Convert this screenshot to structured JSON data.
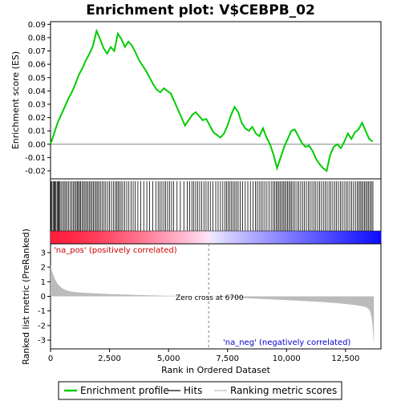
{
  "chart_data": {
    "type": "line",
    "title": "Enrichment plot: V$CEBPB_02",
    "ylabel_top": "Enrichment score (ES)",
    "ylabel_bottom": "Ranked list metric (PreRanked)",
    "xlabel": "Rank in Ordered Dataset",
    "xlim": [
      0,
      14000
    ],
    "es_ylim": [
      -0.026,
      0.092
    ],
    "es_yticks": [
      "-0.02",
      "-0.01",
      "0.00",
      "0.01",
      "0.02",
      "0.03",
      "0.04",
      "0.05",
      "0.06",
      "0.07",
      "0.08",
      "0.09"
    ],
    "es_ytick_values": [
      -0.02,
      -0.01,
      0.0,
      0.01,
      0.02,
      0.03,
      0.04,
      0.05,
      0.06,
      0.07,
      0.08,
      0.09
    ],
    "metric_ylim": [
      -3.6,
      3.6
    ],
    "metric_yticks": [
      "-3",
      "-2",
      "-1",
      "0",
      "1",
      "2",
      "3"
    ],
    "metric_ytick_values": [
      -3,
      -2,
      -1,
      0,
      1,
      2,
      3
    ],
    "xticks": [
      "0",
      "2,500",
      "5,000",
      "7,500",
      "10,000",
      "12,500"
    ],
    "xtick_values": [
      0,
      2500,
      5000,
      7500,
      10000,
      12500
    ],
    "series": [
      {
        "name": "Enrichment profile",
        "color": "#00cc00",
        "x": [
          0,
          150,
          300,
          450,
          600,
          750,
          900,
          1050,
          1200,
          1350,
          1500,
          1650,
          1800,
          1950,
          2100,
          2250,
          2400,
          2550,
          2700,
          2850,
          3000,
          3150,
          3300,
          3450,
          3600,
          3750,
          3900,
          4050,
          4200,
          4350,
          4500,
          4650,
          4800,
          4950,
          5100,
          5250,
          5400,
          5550,
          5700,
          5850,
          6000,
          6150,
          6300,
          6450,
          6600,
          6750,
          6900,
          7050,
          7200,
          7350,
          7500,
          7650,
          7800,
          7950,
          8100,
          8250,
          8400,
          8550,
          8700,
          8850,
          9000,
          9150,
          9300,
          9450,
          9600,
          9750,
          9900,
          10050,
          10200,
          10350,
          10500,
          10650,
          10800,
          10950,
          11100,
          11250,
          11400,
          11550,
          11700,
          11850,
          12000,
          12150,
          12300,
          12450,
          12600,
          12750,
          12900,
          13050,
          13200,
          13350,
          13500,
          13650
        ],
        "values": [
          0.0,
          0.008,
          0.016,
          0.022,
          0.028,
          0.034,
          0.039,
          0.045,
          0.052,
          0.057,
          0.063,
          0.068,
          0.074,
          0.085,
          0.079,
          0.072,
          0.068,
          0.073,
          0.07,
          0.083,
          0.079,
          0.073,
          0.077,
          0.074,
          0.069,
          0.063,
          0.059,
          0.055,
          0.05,
          0.045,
          0.041,
          0.039,
          0.042,
          0.04,
          0.038,
          0.032,
          0.026,
          0.02,
          0.014,
          0.018,
          0.022,
          0.024,
          0.021,
          0.018,
          0.019,
          0.014,
          0.009,
          0.007,
          0.005,
          0.008,
          0.014,
          0.022,
          0.028,
          0.024,
          0.016,
          0.012,
          0.01,
          0.013,
          0.008,
          0.006,
          0.012,
          0.005,
          0.0,
          -0.008,
          -0.018,
          -0.01,
          -0.002,
          0.004,
          0.01,
          0.011,
          0.006,
          0.001,
          -0.002,
          -0.001,
          -0.005,
          -0.011,
          -0.015,
          -0.018,
          -0.02,
          -0.008,
          -0.002,
          0.0,
          -0.003,
          0.002,
          0.008,
          0.004,
          0.009,
          0.011,
          0.016,
          0.01,
          0.004,
          0.002
        ]
      }
    ],
    "hits": [
      20,
      60,
      110,
      150,
      190,
      230,
      280,
      320,
      360,
      400,
      450,
      520,
      580,
      640,
      700,
      760,
      830,
      900,
      960,
      1020,
      1080,
      1130,
      1180,
      1230,
      1280,
      1340,
      1400,
      1460,
      1520,
      1580,
      1640,
      1700,
      1760,
      1820,
      1880,
      1940,
      2000,
      2060,
      2130,
      2200,
      2270,
      2340,
      2420,
      2500,
      2580,
      2660,
      2740,
      2800,
      2860,
      2920,
      2990,
      3060,
      3140,
      3230,
      3320,
      3410,
      3500,
      3590,
      3700,
      3820,
      3950,
      4080,
      4200,
      4330,
      4460,
      4560,
      4640,
      4720,
      4800,
      4880,
      4960,
      5040,
      5130,
      5220,
      5360,
      5500,
      5650,
      5790,
      5900,
      5990,
      6070,
      6150,
      6230,
      6320,
      6410,
      6500,
      6590,
      6680,
      6770,
      6880,
      7000,
      7100,
      7200,
      7300,
      7390,
      7460,
      7530,
      7600,
      7670,
      7740,
      7810,
      7880,
      7950,
      8040,
      8140,
      8250,
      8360,
      8470,
      8580,
      8680,
      8760,
      8840,
      8920,
      9000,
      9080,
      9170,
      9260,
      9350,
      9430,
      9500,
      9560,
      9620,
      9680,
      9740,
      9800,
      9860,
      9920,
      9980,
      10040,
      10100,
      10160,
      10220,
      10290,
      10360,
      10440,
      10520,
      10600,
      10680,
      10760,
      10840,
      10920,
      11000,
      11080,
      11160,
      11240,
      11320,
      11400,
      11480,
      11560,
      11640,
      11720,
      11800,
      11880,
      11960,
      12040,
      12120,
      12200,
      12280,
      12360,
      12440,
      12520,
      12600,
      12680,
      12760,
      12840,
      12920,
      13000,
      13060,
      13120,
      13180,
      13240,
      13300,
      13360,
      13420,
      13480,
      13540,
      13600,
      13660
    ],
    "zero_cross": 6700,
    "annotations": {
      "pos_label": "'na_pos' (positively correlated)",
      "neg_label": "'na_neg' (negatively correlated)",
      "zero_label": "Zero cross at 6700"
    },
    "legend": {
      "placement": "bottom",
      "items": [
        {
          "label": "Enrichment profile",
          "color": "#00cc00"
        },
        {
          "label": "Hits",
          "color": "#000000"
        },
        {
          "label": "Ranking metric scores",
          "color": "#bbbbbb"
        }
      ]
    },
    "colors": {
      "es_line": "#00cc00",
      "hit_line": "#000000",
      "metric_fill": "#bbbbbb",
      "pos_color": "#ff0000",
      "neg_color": "#0000ff",
      "zero_line": "#808080"
    }
  }
}
